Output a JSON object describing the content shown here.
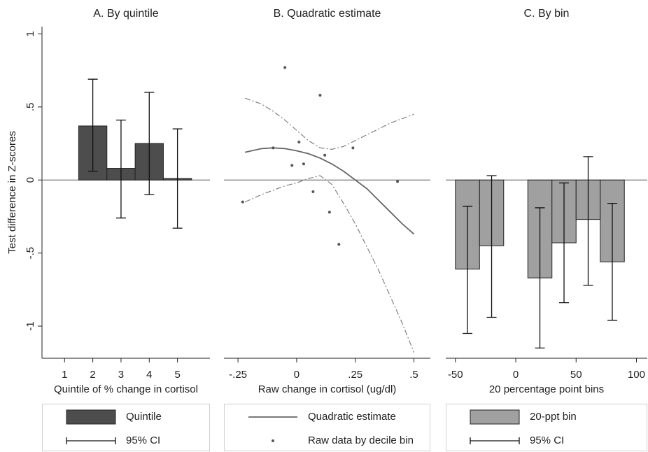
{
  "chart_data": [
    {
      "type": "bar",
      "title": "A. By quintile",
      "x_label": "Quintile of % change in cortisol",
      "y_label": "Test difference in Z-scores",
      "x": [
        1,
        2,
        3,
        4,
        5
      ],
      "xlim": [
        0.2,
        6.15
      ],
      "xticks": [
        1,
        2,
        3,
        4,
        5
      ],
      "ylim": [
        -1.22,
        1.05
      ],
      "yticks": [
        {
          "value": -1,
          "label": "-1"
        },
        {
          "value": -0.5,
          "label": "-.5"
        },
        0,
        {
          "value": 0.5,
          "label": ".5"
        },
        1
      ],
      "series": [
        {
          "name": "Quintile",
          "type": "bar",
          "color": "#4d4d4d",
          "values": [
            0,
            0.37,
            0.08,
            0.25,
            0.01
          ]
        },
        {
          "name": "95% CI",
          "type": "errorbar",
          "color": "#111111",
          "low": [
            null,
            0.06,
            -0.26,
            -0.1,
            -0.33
          ],
          "high": [
            null,
            0.69,
            0.41,
            0.6,
            0.35
          ]
        }
      ]
    },
    {
      "type": "line",
      "title": "B. Quadratic estimate",
      "x_label": "Raw change in cortisol (ug/dl)",
      "xlim": [
        -0.31,
        0.57
      ],
      "xticks": [
        {
          "value": -0.25,
          "label": "-.25"
        },
        0,
        {
          "value": 0.25,
          "label": ".25"
        },
        {
          "value": 0.5,
          "label": ".5"
        }
      ],
      "ylim": [
        -1.22,
        1.05
      ],
      "series": [
        {
          "name": "Quadratic estimate",
          "type": "line",
          "color": "#666666",
          "x": [
            -0.22,
            -0.15,
            -0.1,
            -0.05,
            0,
            0.05,
            0.1,
            0.15,
            0.2,
            0.25,
            0.3,
            0.35,
            0.4,
            0.45,
            0.5
          ],
          "values": [
            0.19,
            0.215,
            0.22,
            0.215,
            0.2,
            0.18,
            0.15,
            0.11,
            0.06,
            0.0,
            -0.06,
            -0.14,
            -0.22,
            -0.3,
            -0.37
          ],
          "ci_upper": [
            0.56,
            0.52,
            0.47,
            0.41,
            0.34,
            0.27,
            0.22,
            0.21,
            0.23,
            0.27,
            0.31,
            0.35,
            0.39,
            0.42,
            0.45
          ],
          "ci_lower": [
            -0.15,
            -0.1,
            -0.07,
            -0.04,
            -0.02,
            0.01,
            0.03,
            -0.03,
            -0.16,
            -0.3,
            -0.46,
            -0.62,
            -0.8,
            -0.98,
            -1.18
          ]
        },
        {
          "name": "Raw data by decile bin",
          "type": "scatter",
          "color": "#555555",
          "x": [
            -0.23,
            -0.05,
            -0.1,
            0.01,
            -0.02,
            0.03,
            0.07,
            0.1,
            0.12,
            0.14,
            0.18,
            0.24,
            0.43
          ],
          "values": [
            -0.15,
            0.77,
            0.22,
            0.26,
            0.1,
            0.11,
            -0.08,
            0.58,
            0.17,
            -0.22,
            -0.44,
            0.22,
            -0.01
          ]
        }
      ]
    },
    {
      "type": "bar",
      "title": "C. By bin",
      "x_label": "20 percentage point bins",
      "x": [
        -40,
        -20,
        0,
        20,
        40,
        60,
        80
      ],
      "xlim": [
        -58,
        109
      ],
      "xticks": [
        -50,
        0,
        50,
        100
      ],
      "ylim": [
        -1.22,
        1.05
      ],
      "series": [
        {
          "name": "20-ppt bin",
          "type": "bar",
          "color": "#a0a0a0",
          "values": [
            -0.61,
            -0.45,
            0,
            -0.67,
            -0.43,
            -0.27,
            -0.56
          ]
        },
        {
          "name": "95% CI",
          "type": "errorbar",
          "color": "#111111",
          "low": [
            -1.05,
            -0.94,
            null,
            -1.15,
            -0.84,
            -0.72,
            -0.96
          ],
          "high": [
            -0.18,
            0.03,
            null,
            -0.19,
            -0.02,
            0.16,
            -0.16
          ]
        }
      ]
    }
  ]
}
